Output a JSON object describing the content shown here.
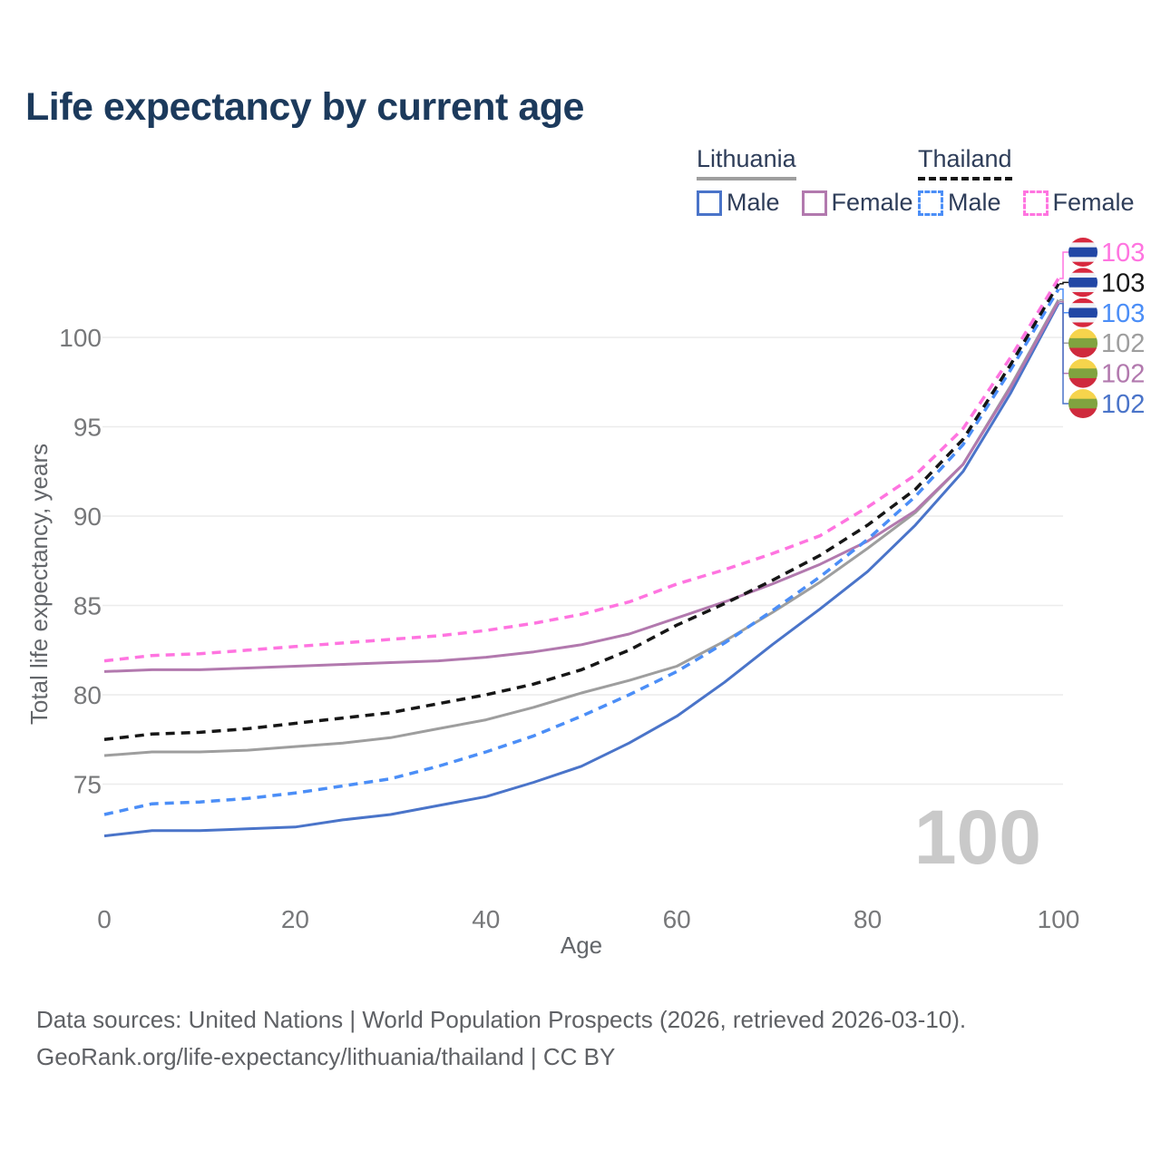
{
  "title": "Life expectancy by current age",
  "legend": {
    "groups": [
      {
        "label": "Lithuania",
        "items": [
          {
            "label": "Male"
          },
          {
            "label": "Female"
          }
        ]
      },
      {
        "label": "Thailand",
        "items": [
          {
            "label": "Male"
          },
          {
            "label": "Female"
          }
        ]
      }
    ]
  },
  "watermark": "100",
  "footer": {
    "line1": "Data sources: United Nations | World Population Prospects (2026, retrieved 2026-03-10).",
    "line2": "GeoRank.org/life-expectancy/lithuania/thailand | CC BY"
  },
  "flags": {
    "thailand": [
      [
        "#d7293f",
        0.1667
      ],
      [
        "#f1f2f6",
        0.1666
      ],
      [
        "#2146a5",
        0.3334
      ],
      [
        "#f1f2f6",
        0.1666
      ],
      [
        "#d7293f",
        0.1667
      ]
    ],
    "lithuania": [
      [
        "#f6d44c",
        0.3333
      ],
      [
        "#80a33f",
        0.3334
      ],
      [
        "#cf2a3d",
        0.3333
      ]
    ]
  },
  "chart_data": {
    "type": "line",
    "title": "Life expectancy by current age",
    "xlabel": "Age",
    "ylabel": "Total life expectancy, years",
    "xlim": [
      0,
      100
    ],
    "ylim": [
      70,
      104
    ],
    "x_ticks": [
      0,
      20,
      40,
      60,
      80,
      100
    ],
    "y_ticks": [
      75,
      80,
      85,
      90,
      95,
      100
    ],
    "grid": "horizontal",
    "legend_position": "top-right",
    "x": [
      0,
      5,
      10,
      15,
      20,
      25,
      30,
      35,
      40,
      45,
      50,
      55,
      60,
      65,
      70,
      75,
      80,
      85,
      90,
      95,
      100
    ],
    "series": [
      {
        "id": "thailand-female",
        "name": "Thailand Female",
        "country": "Thailand",
        "sex": "Female",
        "color": "#ff74e0",
        "line_style": "dashed",
        "flag": "thailand",
        "end_label": "103",
        "label_row": 0,
        "values": [
          81.9,
          82.2,
          82.3,
          82.5,
          82.7,
          82.9,
          83.1,
          83.3,
          83.6,
          84.0,
          84.5,
          85.2,
          86.2,
          87.0,
          87.9,
          88.9,
          90.5,
          92.3,
          94.9,
          98.9,
          103.3
        ]
      },
      {
        "id": "thailand-total",
        "name": "Thailand",
        "country": "Thailand",
        "sex": "Both",
        "color": "#161616",
        "line_style": "dashed",
        "flag": "thailand",
        "end_label": "103",
        "label_row": 1,
        "values": [
          77.5,
          77.8,
          77.9,
          78.1,
          78.4,
          78.7,
          79.0,
          79.5,
          80.0,
          80.6,
          81.4,
          82.5,
          83.9,
          85.1,
          86.4,
          87.8,
          89.5,
          91.5,
          94.3,
          98.5,
          103.0
        ]
      },
      {
        "id": "thailand-male",
        "name": "Thailand Male",
        "country": "Thailand",
        "sex": "Male",
        "color": "#4b8ef7",
        "line_style": "dashed",
        "flag": "thailand",
        "end_label": "103",
        "label_row": 2,
        "values": [
          73.3,
          73.9,
          74.0,
          74.2,
          74.5,
          74.9,
          75.3,
          76.0,
          76.8,
          77.7,
          78.8,
          80.0,
          81.3,
          82.9,
          84.7,
          86.6,
          88.7,
          91.1,
          94.0,
          98.2,
          102.7
        ]
      },
      {
        "id": "lithuania-total",
        "name": "Lithuania",
        "country": "Lithuania",
        "sex": "Both",
        "color": "#9e9e9e",
        "line_style": "solid",
        "flag": "lithuania",
        "end_label": "102",
        "label_row": 3,
        "values": [
          76.6,
          76.8,
          76.8,
          76.9,
          77.1,
          77.3,
          77.6,
          78.1,
          78.6,
          79.3,
          80.1,
          80.8,
          81.6,
          83.0,
          84.6,
          86.3,
          88.2,
          90.2,
          92.9,
          97.3,
          102.1
        ]
      },
      {
        "id": "lithuania-female",
        "name": "Lithuania Female",
        "country": "Lithuania",
        "sex": "Female",
        "color": "#b279ae",
        "line_style": "solid",
        "flag": "lithuania",
        "end_label": "102",
        "label_row": 4,
        "values": [
          81.3,
          81.4,
          81.4,
          81.5,
          81.6,
          81.7,
          81.8,
          81.9,
          82.1,
          82.4,
          82.8,
          83.4,
          84.3,
          85.2,
          86.2,
          87.3,
          88.6,
          90.3,
          92.9,
          97.2,
          102.0
        ]
      },
      {
        "id": "lithuania-male",
        "name": "Lithuania Male",
        "country": "Lithuania",
        "sex": "Male",
        "color": "#4a74c9",
        "line_style": "solid",
        "flag": "lithuania",
        "end_label": "102",
        "label_row": 5,
        "values": [
          72.1,
          72.4,
          72.4,
          72.5,
          72.6,
          73.0,
          73.3,
          73.8,
          74.3,
          75.1,
          76.0,
          77.3,
          78.8,
          80.7,
          82.8,
          84.8,
          86.9,
          89.5,
          92.5,
          96.9,
          101.9
        ]
      }
    ]
  }
}
